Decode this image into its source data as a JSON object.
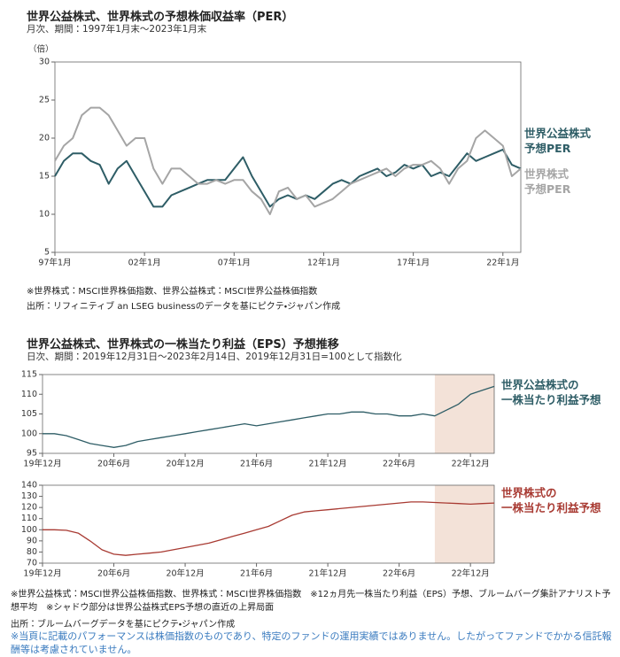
{
  "chart_data": [
    {
      "type": "line",
      "title": "世界公益株式、世界株式の予想株価収益率（PER）",
      "subtitle": "月次、期間：1997年1月末～2023年1月末",
      "y_label": "（倍）",
      "notes": [
        "※世界株式：MSCI世界株価指数、世界公益株式：MSCI世界公益株価指数",
        "出所：リフィニティブ an LSEG businessのデータを基にピクテ・ジャパン作成"
      ],
      "categories": [
        "97年1月",
        null,
        null,
        null,
        null,
        null,
        null,
        null,
        null,
        null,
        "02年1月",
        null,
        null,
        null,
        null,
        null,
        null,
        null,
        null,
        null,
        "07年1月",
        null,
        null,
        null,
        null,
        null,
        null,
        null,
        null,
        null,
        "12年1月",
        null,
        null,
        null,
        null,
        null,
        null,
        null,
        null,
        null,
        "17年1月",
        null,
        null,
        null,
        null,
        null,
        null,
        null,
        null,
        null,
        "22年1月",
        null,
        null
      ],
      "series": [
        {
          "name": "世界公益株式\n予想PER",
          "color": "#2e5d66",
          "values": [
            15,
            17,
            18,
            18,
            17,
            16.5,
            14,
            16,
            17,
            15,
            13,
            11,
            11,
            12.5,
            13,
            13.5,
            14,
            14.5,
            14.5,
            14.5,
            16,
            17.5,
            15,
            13,
            11,
            12,
            12.5,
            12,
            12.5,
            12,
            13,
            14,
            14.5,
            14,
            15,
            15.5,
            16,
            15,
            15.5,
            16.5,
            16,
            16.5,
            15,
            15.5,
            15,
            16.5,
            18,
            17,
            17.5,
            18,
            18.5,
            16.5,
            16
          ]
        },
        {
          "name": "世界株式\n予想PER",
          "color": "#a5a5a5",
          "values": [
            17,
            19,
            20,
            23,
            24,
            24,
            23,
            21,
            19,
            20,
            20,
            16,
            14,
            16,
            16,
            15,
            14,
            14,
            14.5,
            14,
            14.5,
            14.5,
            13,
            12,
            10,
            13,
            13.5,
            12,
            12.5,
            11,
            11.5,
            12,
            13,
            14,
            14.5,
            15,
            15.5,
            16,
            15,
            16,
            16.5,
            16.5,
            17,
            16,
            14,
            16,
            17,
            20,
            21,
            20,
            19,
            15,
            16
          ]
        }
      ],
      "ylim": [
        5,
        30
      ],
      "yticks": [
        5,
        10,
        15,
        20,
        25,
        30
      ]
    },
    {
      "type": "line",
      "title": "世界公益株式、世界株式の一株当たり利益（EPS）予想推移",
      "subtitle": "日次、期間：2019年12月31日～2023年2月14日、2019年12月31日=100として指数化",
      "categories": [
        "19年12月",
        null,
        null,
        null,
        null,
        null,
        "20年6月",
        null,
        null,
        null,
        null,
        null,
        "20年12月",
        null,
        null,
        null,
        null,
        null,
        "21年6月",
        null,
        null,
        null,
        null,
        null,
        "21年12月",
        null,
        null,
        null,
        null,
        null,
        "22年6月",
        null,
        null,
        null,
        null,
        null,
        "22年12月",
        null,
        null
      ],
      "series": [
        {
          "name": "世界公益株式の\n一株当たり利益予想",
          "color": "#2e5d66",
          "values": [
            100,
            100,
            99.5,
            98.5,
            97.5,
            97,
            96.5,
            97,
            98,
            98.5,
            99,
            99.5,
            100,
            100.5,
            101,
            101.5,
            102,
            102.5,
            102,
            102.5,
            103,
            103.5,
            104,
            104.5,
            105,
            105,
            105.5,
            105.5,
            105,
            105,
            104.5,
            104.5,
            105,
            104.5,
            106,
            107.5,
            110,
            111,
            112
          ]
        }
      ],
      "shade": {
        "from": 33,
        "to": 38,
        "color": "#f3e2d8"
      },
      "ylim": [
        95,
        115
      ],
      "yticks": [
        95,
        100,
        105,
        110,
        115
      ]
    },
    {
      "type": "line",
      "categories": [
        "19年12月",
        null,
        null,
        null,
        null,
        null,
        "20年6月",
        null,
        null,
        null,
        null,
        null,
        "20年12月",
        null,
        null,
        null,
        null,
        null,
        "21年6月",
        null,
        null,
        null,
        null,
        null,
        "21年12月",
        null,
        null,
        null,
        null,
        null,
        "22年6月",
        null,
        null,
        null,
        null,
        null,
        "22年12月",
        null,
        null
      ],
      "series": [
        {
          "name": "世界株式の\n一株当たり利益予想",
          "color": "#a83a32",
          "values": [
            100,
            100,
            99.5,
            97,
            90,
            82,
            78,
            77,
            78,
            79,
            80,
            82,
            84,
            86,
            88,
            91,
            94,
            97,
            100,
            103,
            108,
            113,
            116,
            117,
            118,
            119,
            120,
            121,
            122,
            123,
            124,
            125,
            125,
            124.5,
            124,
            123.5,
            123,
            123.5,
            124
          ]
        }
      ],
      "shade": {
        "from": 33,
        "to": 38,
        "color": "#f3e2d8"
      },
      "ylim": [
        70,
        140
      ],
      "yticks": [
        70,
        80,
        90,
        100,
        110,
        120,
        130,
        140
      ]
    }
  ],
  "footnotes": [
    "※世界公益株式：MSCI世界公益株価指数、世界株式：MSCI世界株価指数　※12ヵ月先一株当たり利益（EPS）予想、ブルームバーグ集計アナリスト予想平均　※シャドウ部分は世界公益株式EPS予想の直近の上昇局面",
    "出所：ブルームバーグデータを基にピクテ・ジャパン作成"
  ],
  "disclaimer": "※当頁に記載のパフォーマンスは株価指数のものであり、特定のファンドの運用実績ではありません。したがってファンドでかかる信託報酬等は考慮されていません。"
}
